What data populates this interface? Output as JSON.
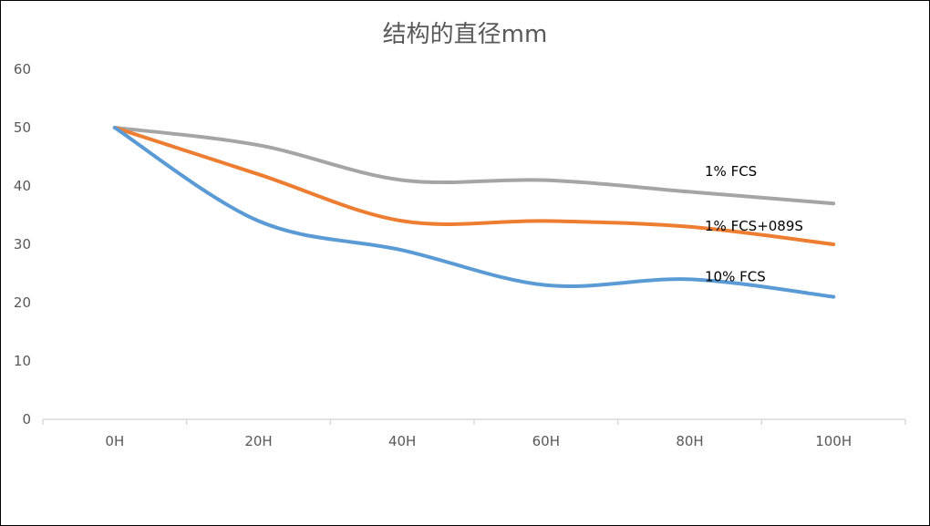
{
  "chart_data": {
    "type": "line",
    "title": "结构的直径mm",
    "xlabel": "",
    "ylabel": "",
    "categories": [
      "0H",
      "20H",
      "40H",
      "60H",
      "80H",
      "100H"
    ],
    "ylim": [
      0,
      60
    ],
    "yticks": [
      "0",
      "10",
      "20",
      "30",
      "40",
      "50",
      "60"
    ],
    "grid": false,
    "legend": "inline labels at right",
    "series": [
      {
        "name": "1% FCS",
        "values": [
          50,
          47,
          41,
          41,
          39,
          37
        ],
        "color": "#A5A5A5"
      },
      {
        "name": "1% FCS+089S",
        "values": [
          50,
          42,
          34,
          34,
          33,
          30
        ],
        "color": "#ED7D31"
      },
      {
        "name": "10% FCS",
        "values": [
          50,
          34,
          29,
          23,
          24,
          21
        ],
        "color": "#5B9BD5"
      }
    ]
  }
}
